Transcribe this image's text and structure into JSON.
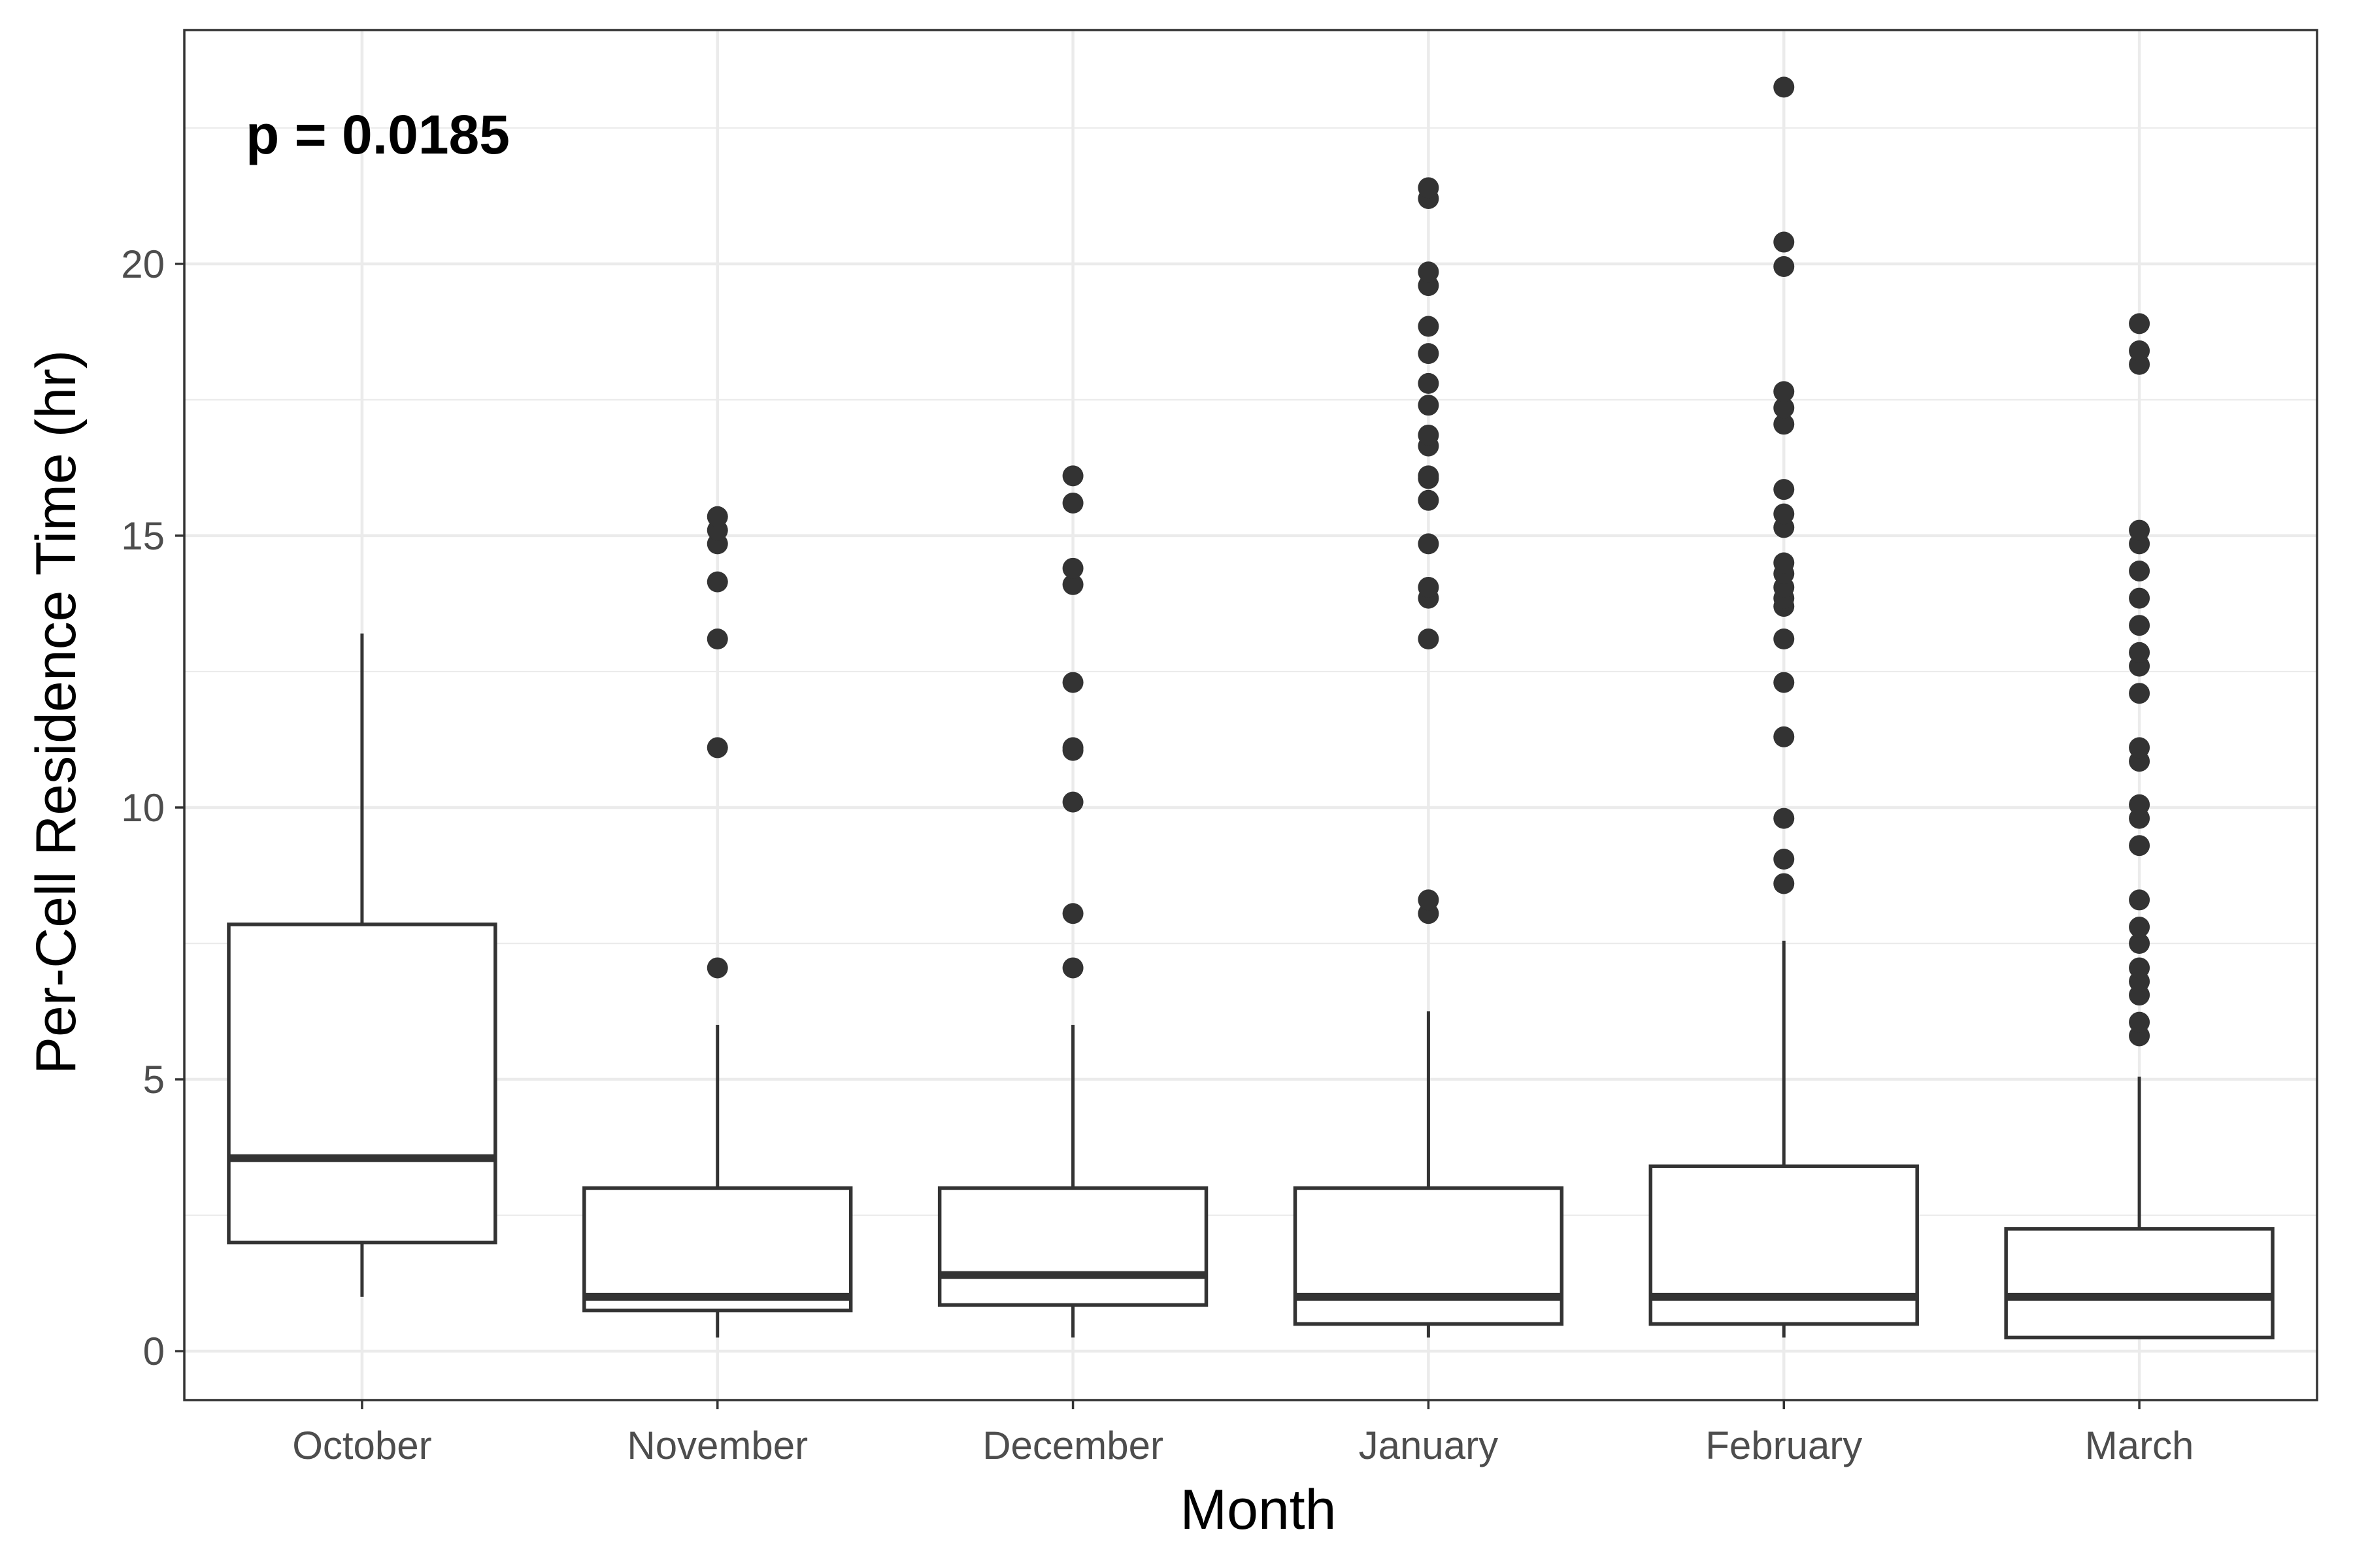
{
  "chart_data": {
    "type": "box",
    "xlabel": "Month",
    "ylabel": "Per-Cell Residence Time (hr)",
    "annotation": "p = 0.0185",
    "categories": [
      "October",
      "November",
      "December",
      "January",
      "February",
      "March"
    ],
    "yticks": [
      0,
      5,
      10,
      15,
      20
    ],
    "ytick_labels": [
      "0",
      "5",
      "10",
      "15",
      "20"
    ],
    "ylim": [
      -0.9,
      24.3
    ],
    "grid": true,
    "theme": "bw",
    "colors": {
      "box_line": "#333333",
      "outlier": "#333333",
      "grid": "#ebebeb",
      "panel_border": "#333333"
    },
    "boxes": [
      {
        "category": "October",
        "whisker_low": 1.0,
        "q1": 2.0,
        "median": 3.55,
        "q3": 7.85,
        "whisker_high": 13.2,
        "outliers": []
      },
      {
        "category": "November",
        "whisker_low": 0.25,
        "q1": 0.75,
        "median": 1.0,
        "q3": 3.0,
        "whisker_high": 6.0,
        "outliers": [
          7.05,
          11.1,
          13.1,
          14.15,
          14.85,
          15.1,
          15.35
        ]
      },
      {
        "category": "December",
        "whisker_low": 0.25,
        "q1": 0.85,
        "median": 1.4,
        "q3": 3.0,
        "whisker_high": 6.0,
        "outliers": [
          7.05,
          8.05,
          10.1,
          11.05,
          11.1,
          12.3,
          14.1,
          14.4,
          15.6,
          16.1
        ]
      },
      {
        "category": "January",
        "whisker_low": 0.25,
        "q1": 0.5,
        "median": 1.0,
        "q3": 3.0,
        "whisker_high": 6.25,
        "outliers": [
          8.05,
          8.3,
          13.1,
          13.85,
          14.05,
          14.85,
          15.65,
          16.05,
          16.1,
          16.65,
          16.85,
          17.4,
          17.8,
          18.35,
          18.85,
          19.6,
          19.85,
          21.2,
          21.4
        ]
      },
      {
        "category": "February",
        "whisker_low": 0.25,
        "q1": 0.5,
        "median": 1.0,
        "q3": 3.4,
        "whisker_high": 7.55,
        "outliers": [
          8.6,
          9.05,
          9.8,
          11.3,
          12.3,
          13.1,
          13.7,
          13.85,
          14.05,
          14.3,
          14.5,
          15.15,
          15.4,
          15.85,
          17.05,
          17.35,
          17.65,
          19.95,
          20.4,
          23.25
        ]
      },
      {
        "category": "March",
        "whisker_low": 0.25,
        "q1": 0.25,
        "median": 1.0,
        "q3": 2.25,
        "whisker_high": 5.05,
        "outliers": [
          5.8,
          6.05,
          6.55,
          6.8,
          7.05,
          7.5,
          7.8,
          8.3,
          9.3,
          9.8,
          10.05,
          10.85,
          11.1,
          12.1,
          12.6,
          12.85,
          13.35,
          13.85,
          14.35,
          14.85,
          15.1,
          18.15,
          18.4,
          18.9
        ]
      }
    ]
  }
}
